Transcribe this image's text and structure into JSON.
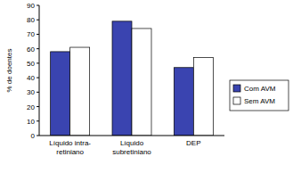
{
  "chart_data": {
    "type": "bar",
    "categories": [
      "Líquido intra-\nretiniano",
      "Líquido\nsubretiniano",
      "DEP"
    ],
    "series": [
      {
        "name": "Com AVM",
        "color": "#3a44b0",
        "values": [
          58,
          79,
          47
        ]
      },
      {
        "name": "Sem AVM",
        "color": "#ffffff",
        "values": [
          61,
          74,
          54
        ]
      }
    ],
    "y_label": "% de doentes",
    "ylim": [
      0,
      90
    ],
    "yticks": [
      0,
      10,
      20,
      30,
      40,
      50,
      60,
      70,
      80,
      90
    ],
    "grid": false,
    "legend": "right"
  }
}
